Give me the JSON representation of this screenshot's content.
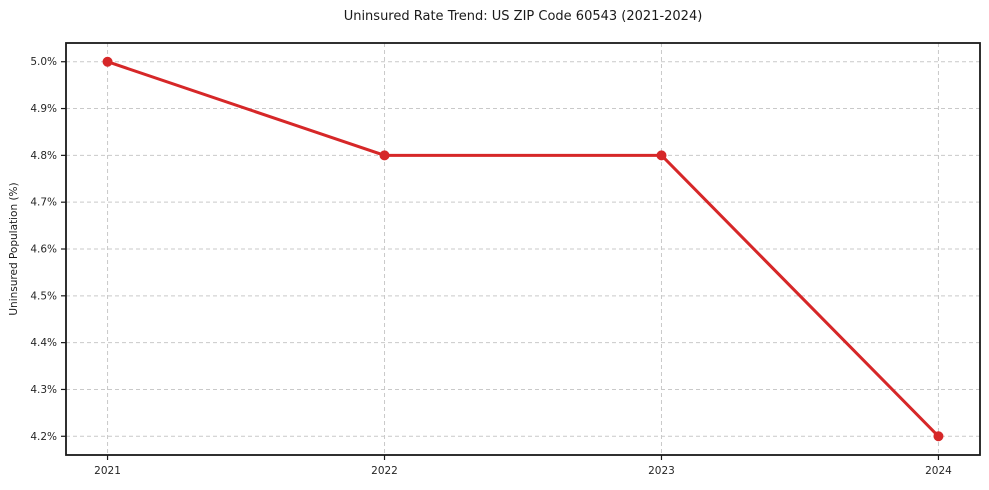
{
  "chart_data": {
    "type": "line",
    "title": "Uninsured Rate Trend: US ZIP Code 60543 (2021-2024)",
    "xlabel": "",
    "ylabel": "Uninsured Population (%)",
    "x": [
      2021,
      2022,
      2023,
      2024
    ],
    "x_tick_labels": [
      "2021",
      "2022",
      "2023",
      "2024"
    ],
    "series": [
      {
        "name": "Uninsured Population (%)",
        "values": [
          5.0,
          4.8,
          4.8,
          4.2
        ]
      }
    ],
    "y_tick_values": [
      4.2,
      4.3,
      4.4,
      4.5,
      4.6,
      4.7,
      4.8,
      4.9,
      5.0
    ],
    "y_tick_labels": [
      "4.2%",
      "4.3%",
      "4.4%",
      "4.5%",
      "4.6%",
      "4.7%",
      "4.8%",
      "4.9%",
      "5.0%"
    ],
    "xlim": [
      2020.85,
      2024.15
    ],
    "ylim": [
      4.16,
      5.04
    ],
    "grid": true,
    "grid_style": "dashed",
    "legend_position": "none",
    "colors": {
      "line": "#d62728",
      "marker": "#d62728",
      "grid": "#c9c9c9",
      "spine": "#1a1a1a",
      "text": "#262626",
      "background": "#ffffff"
    }
  }
}
